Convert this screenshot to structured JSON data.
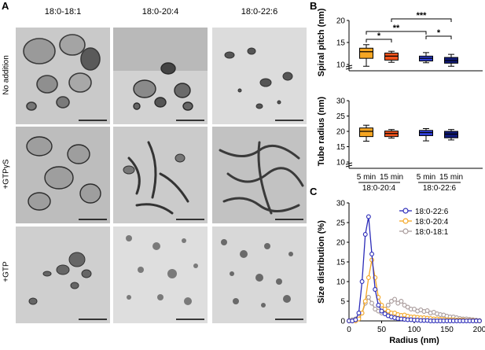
{
  "panel_labels": {
    "a": "A",
    "b": "B",
    "c": "C"
  },
  "panel_a": {
    "columns": [
      "18:0-18:1",
      "18:0-20:4",
      "18:0-22:6"
    ],
    "rows": [
      "No addition",
      "+GTPγS",
      "+GTP"
    ]
  },
  "chart_data": [
    {
      "type": "box",
      "panel": "B-top",
      "ylabel": "Spiral pitch (nm)",
      "ylim": [
        10,
        20
      ],
      "axis_break": true,
      "yticks": [
        "10",
        "15",
        "20"
      ],
      "ytick_values": [
        10,
        15,
        20
      ],
      "series": [
        {
          "group": "18:0-20:4",
          "time": "5 min",
          "color": "#f5a623",
          "whisker_low": 9.6,
          "q1": 11.4,
          "median": 12.9,
          "q3": 13.7,
          "whisker_high": 14.5
        },
        {
          "group": "18:0-20:4",
          "time": "15 min",
          "color": "#f0531c",
          "whisker_low": 10.5,
          "q1": 11.0,
          "median": 11.9,
          "q3": 12.6,
          "whisker_high": 13.0
        },
        {
          "group": "18:0-22:6",
          "time": "5 min",
          "color": "#2f3fd6",
          "whisker_low": 10.4,
          "q1": 10.8,
          "median": 11.4,
          "q3": 11.9,
          "whisker_high": 12.7
        },
        {
          "group": "18:0-22:6",
          "time": "15 min",
          "color": "#101a7a",
          "whisker_low": 9.6,
          "q1": 10.3,
          "median": 10.9,
          "q3": 11.6,
          "whisker_high": 12.3
        }
      ],
      "significance": [
        {
          "from": 0,
          "to": 1,
          "label": "*"
        },
        {
          "from": 0,
          "to": 2,
          "label": "**"
        },
        {
          "from": 1,
          "to": 3,
          "label": "***"
        },
        {
          "from": 2,
          "to": 3,
          "label": "*"
        }
      ]
    },
    {
      "type": "box",
      "panel": "B-bottom",
      "ylabel": "Tube radius (nm)",
      "ylim": [
        10,
        30
      ],
      "axis_break": true,
      "yticks": [
        "10",
        "15",
        "20",
        "25",
        "30"
      ],
      "ytick_values": [
        10,
        15,
        20,
        25,
        30
      ],
      "xticks": [
        "5 min",
        "15 min",
        "5 min",
        "15 min"
      ],
      "groups": [
        "18:0-20:4",
        "18:0-22:6"
      ],
      "series": [
        {
          "group": "18:0-20:4",
          "time": "5 min",
          "color": "#f5a623",
          "whisker_low": 16.8,
          "q1": 18.3,
          "median": 20.0,
          "q3": 21.1,
          "whisker_high": 22.0
        },
        {
          "group": "18:0-20:4",
          "time": "15 min",
          "color": "#f0531c",
          "whisker_low": 17.8,
          "q1": 18.3,
          "median": 19.3,
          "q3": 20.1,
          "whisker_high": 20.6
        },
        {
          "group": "18:0-22:6",
          "time": "5 min",
          "color": "#2f3fd6",
          "whisker_low": 16.9,
          "q1": 18.6,
          "median": 19.6,
          "q3": 20.3,
          "whisker_high": 20.9
        },
        {
          "group": "18:0-22:6",
          "time": "15 min",
          "color": "#101a7a",
          "whisker_low": 17.2,
          "q1": 17.9,
          "median": 19.1,
          "q3": 20.0,
          "whisker_high": 20.6
        }
      ]
    },
    {
      "type": "line",
      "panel": "C",
      "xlabel": "Radius (nm)",
      "ylabel": "Size distribution (%)",
      "xlim": [
        0,
        200
      ],
      "ylim": [
        0,
        30
      ],
      "xticks": [
        0,
        50,
        100,
        150,
        200
      ],
      "yticks": [
        0,
        5,
        10,
        15,
        20,
        25,
        30
      ],
      "legend_position": "top-right",
      "series": [
        {
          "name": "18:0-22:6",
          "color": "#2b2bb8",
          "x": [
            0,
            5,
            10,
            15,
            20,
            25,
            30,
            35,
            40,
            45,
            50,
            55,
            60,
            65,
            70,
            75,
            80,
            85,
            90,
            95,
            100,
            105,
            110,
            115,
            120,
            125,
            130,
            135,
            140,
            145,
            150,
            155,
            160,
            165,
            170,
            175,
            180,
            185,
            190,
            195,
            200
          ],
          "y": [
            0,
            0,
            0.3,
            2,
            10,
            22,
            26.5,
            17,
            8,
            4,
            2.5,
            1.8,
            1.3,
            1,
            0.8,
            0.6,
            0.5,
            0.4,
            0.3,
            0.3,
            0.2,
            0.2,
            0.1,
            0.1,
            0.1,
            0,
            0,
            0,
            0,
            0,
            0,
            0,
            0,
            0,
            0,
            0,
            0,
            0,
            0,
            0,
            0
          ]
        },
        {
          "name": "18:0-20:4",
          "color": "#f5a623",
          "x": [
            0,
            5,
            10,
            15,
            20,
            25,
            30,
            35,
            40,
            45,
            50,
            55,
            60,
            65,
            70,
            75,
            80,
            85,
            90,
            95,
            100,
            105,
            110,
            115,
            120,
            125,
            130,
            135,
            140,
            145,
            150,
            155,
            160,
            165,
            170,
            175,
            180,
            185,
            190,
            195,
            200
          ],
          "y": [
            0,
            0,
            0,
            0.5,
            2,
            5,
            11,
            15.5,
            11,
            6,
            4,
            3,
            2.5,
            2,
            2,
            1.6,
            1.4,
            1.5,
            1.2,
            1,
            1,
            0.9,
            0.8,
            0.8,
            0.7,
            0.6,
            0.5,
            0.5,
            0.4,
            0.4,
            0.3,
            0.3,
            0.3,
            0.2,
            0.2,
            0.2,
            0.1,
            0.1,
            0.1,
            0,
            0
          ]
        },
        {
          "name": "18:0-18:1",
          "color": "#a89a9a",
          "x": [
            0,
            5,
            10,
            15,
            20,
            25,
            30,
            35,
            40,
            45,
            50,
            55,
            60,
            65,
            70,
            75,
            80,
            85,
            90,
            95,
            100,
            105,
            110,
            115,
            120,
            125,
            130,
            135,
            140,
            145,
            150,
            155,
            160,
            165,
            170,
            175,
            180,
            185,
            190,
            195,
            200
          ],
          "y": [
            0,
            0.3,
            0.5,
            1,
            2,
            4.5,
            6,
            4.5,
            3,
            2.5,
            2,
            3,
            4,
            5,
            5.5,
            4.5,
            5,
            4,
            3.5,
            3,
            3,
            2.5,
            2.8,
            2.4,
            2.6,
            2,
            2.2,
            1.8,
            1.6,
            1.5,
            1.2,
            1,
            1,
            0.8,
            0.6,
            0.5,
            0.5,
            0.4,
            0.3,
            0.2,
            0.1
          ]
        }
      ]
    }
  ]
}
